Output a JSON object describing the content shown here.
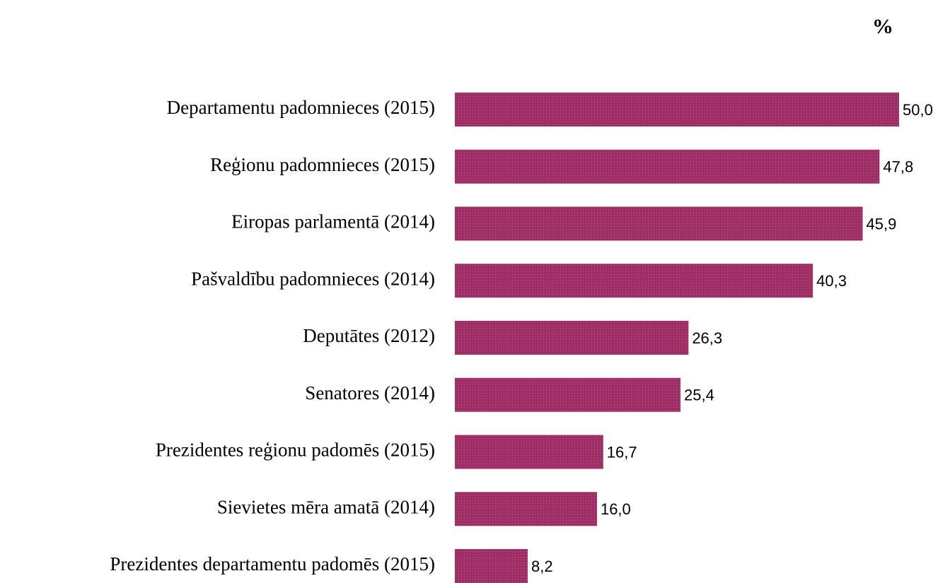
{
  "chart_data": {
    "type": "bar",
    "orientation": "horizontal",
    "title": "%",
    "categories": [
      "Departamentu padomnieces (2015)",
      "Reģionu padomnieces (2015)",
      "Eiropas parlamentā (2014)",
      "Pašvaldību padomnieces (2014)",
      "Deputātes (2012)",
      "Senatores (2014)",
      "Prezidentes reģionu padomēs (2015)",
      "Sievietes mēra amatā (2014)",
      "Prezidentes departamentu padomēs (2015)"
    ],
    "values": [
      50.0,
      47.8,
      45.9,
      40.3,
      26.3,
      25.4,
      16.7,
      16.0,
      8.2
    ],
    "value_labels": [
      "50,0",
      "47,8",
      "45,9",
      "40,3",
      "26,3",
      "25,4",
      "16,7",
      "16,0",
      "8,2"
    ],
    "color": "#9e2d66"
  }
}
